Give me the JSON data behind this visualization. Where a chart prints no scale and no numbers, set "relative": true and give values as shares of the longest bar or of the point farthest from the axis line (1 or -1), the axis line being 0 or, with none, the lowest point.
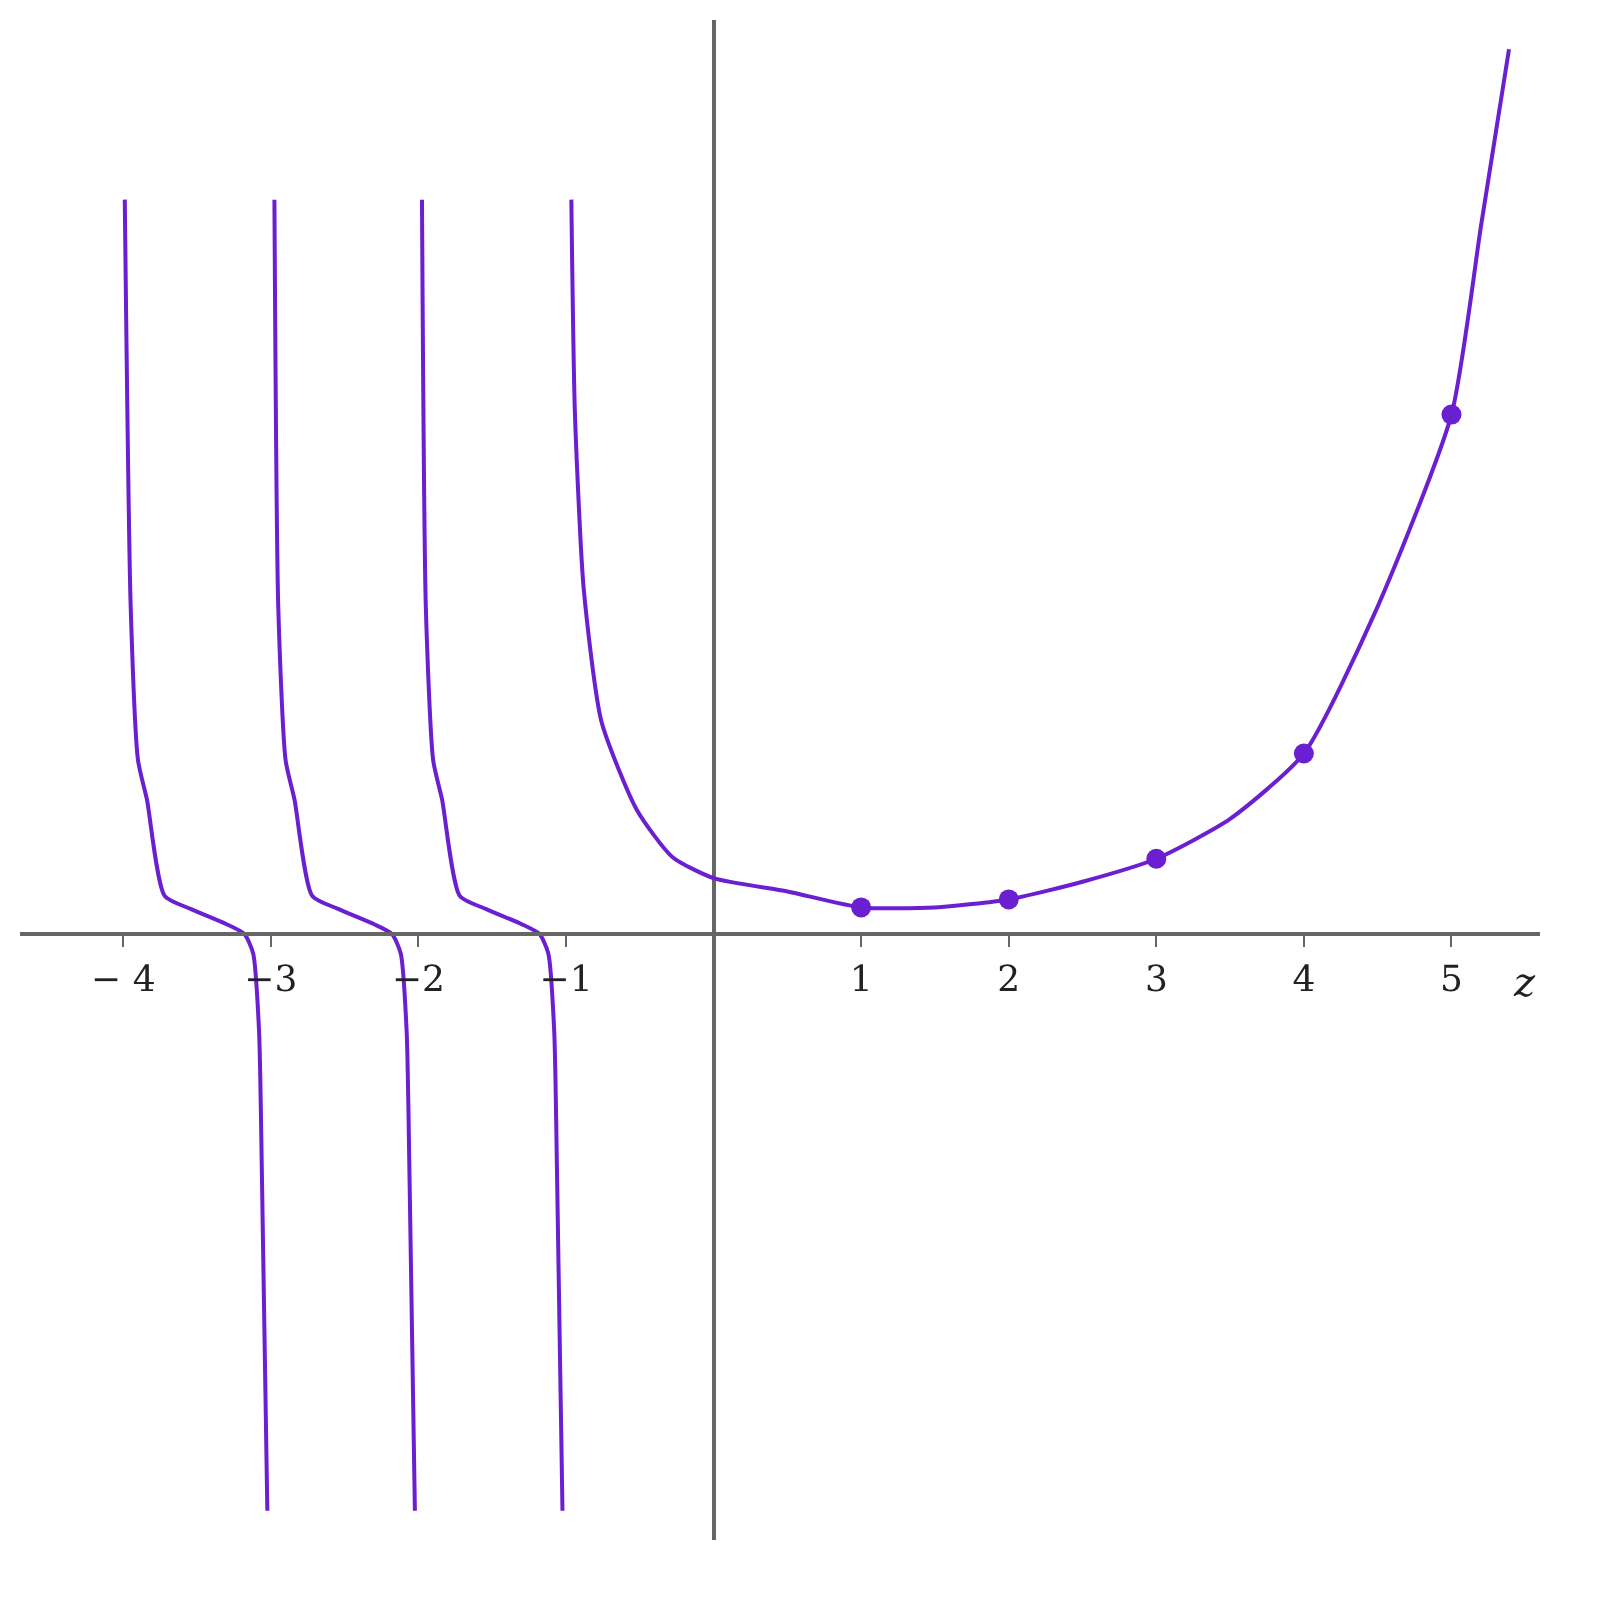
{
  "chart_data": {
    "type": "line",
    "relative": true,
    "xlabel": "z",
    "xlim": [
      -4.7,
      5.6
    ],
    "xticks": [
      {
        "value": -4,
        "label": "− 4"
      },
      {
        "value": -3,
        "label": "−3"
      },
      {
        "value": -2,
        "label": "−2"
      },
      {
        "value": -1,
        "label": "−1"
      },
      1,
      2,
      3,
      4,
      5
    ],
    "series": [
      {
        "color": "#6a1fd0",
        "marker": "none",
        "x": [
          -0.964,
          -0.94,
          -0.88,
          -0.76,
          -0.52,
          -0.28,
          0,
          0.5,
          1,
          1.5,
          2,
          2.5,
          3,
          3.5,
          4,
          4.5,
          5,
          5.2,
          5.39
        ],
        "values": [
          0.83,
          0.59,
          0.39,
          0.24,
          0.14,
          0.087,
          0.063,
          0.048,
          0.03,
          0.03,
          0.039,
          0.059,
          0.085,
          0.13,
          0.204,
          0.37,
          0.587,
          0.8,
          1.0
        ]
      },
      {
        "color": "#6a1fd0",
        "marker": "none",
        "x": [
          -1.976,
          -1.95,
          -1.9,
          -1.84,
          -1.72,
          -1.54,
          -1.3,
          -1.18,
          -1.12,
          -1.08,
          -1.06,
          -1.024
        ],
        "values": [
          0.83,
          0.37,
          0.196,
          0.152,
          0.043,
          0.028,
          0.011,
          0.0,
          -0.022,
          -0.11,
          -0.28,
          -0.652
        ]
      },
      {
        "color": "#6a1fd0",
        "marker": "none",
        "x": [
          -2.976,
          -2.95,
          -2.9,
          -2.84,
          -2.72,
          -2.54,
          -2.3,
          -2.18,
          -2.12,
          -2.08,
          -2.06,
          -2.024
        ],
        "values": [
          0.83,
          0.37,
          0.196,
          0.152,
          0.043,
          0.028,
          0.011,
          0.0,
          -0.022,
          -0.11,
          -0.28,
          -0.652
        ]
      },
      {
        "color": "#6a1fd0",
        "marker": "none",
        "x": [
          -3.99,
          -3.95,
          -3.9,
          -3.84,
          -3.72,
          -3.54,
          -3.3,
          -3.18,
          -3.12,
          -3.08,
          -3.06,
          -3.024
        ],
        "values": [
          0.83,
          0.37,
          0.196,
          0.152,
          0.043,
          0.028,
          0.011,
          0.0,
          -0.022,
          -0.11,
          -0.28,
          -0.652
        ]
      },
      {
        "color": "#6a1fd0",
        "type": "scatter",
        "marker": "circle",
        "x": [
          1,
          2,
          3,
          4,
          5
        ],
        "values": [
          0.03,
          0.039,
          0.085,
          0.204,
          0.587
        ]
      }
    ]
  }
}
